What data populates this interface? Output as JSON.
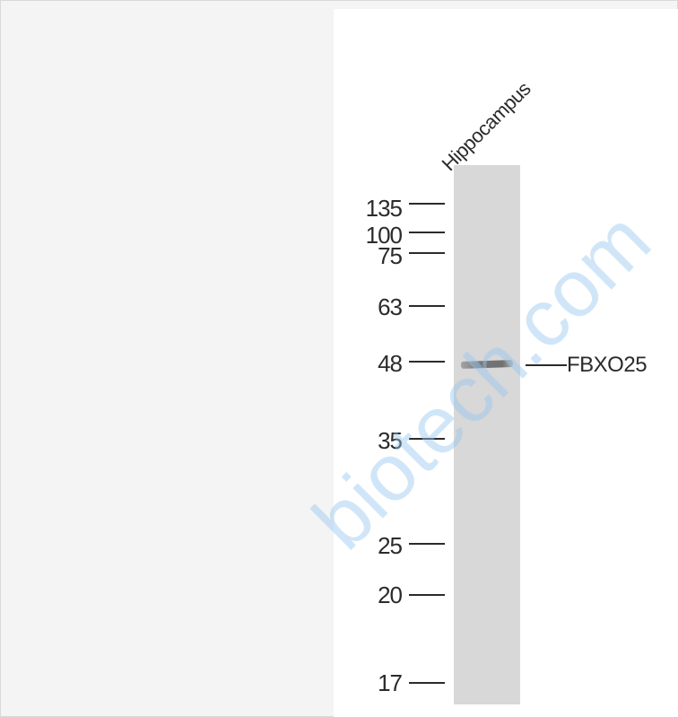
{
  "lane_label": "Hippocampus",
  "markers": [
    {
      "label": "135",
      "kda": 135
    },
    {
      "label": "100",
      "kda": 100
    },
    {
      "label": "75",
      "kda": 75
    },
    {
      "label": "63",
      "kda": 63
    },
    {
      "label": "48",
      "kda": 48
    },
    {
      "label": "35",
      "kda": 35
    },
    {
      "label": "25",
      "kda": 25
    },
    {
      "label": "20",
      "kda": 20
    },
    {
      "label": "17",
      "kda": 17
    }
  ],
  "target": {
    "label": "FBXO25",
    "kda": 48
  },
  "watermark": "biotech.com",
  "colors": {
    "lane": "#d8d8d8",
    "band": "#6a6a6a",
    "text": "#2b2b2b",
    "watermark": "#96c8f0"
  }
}
